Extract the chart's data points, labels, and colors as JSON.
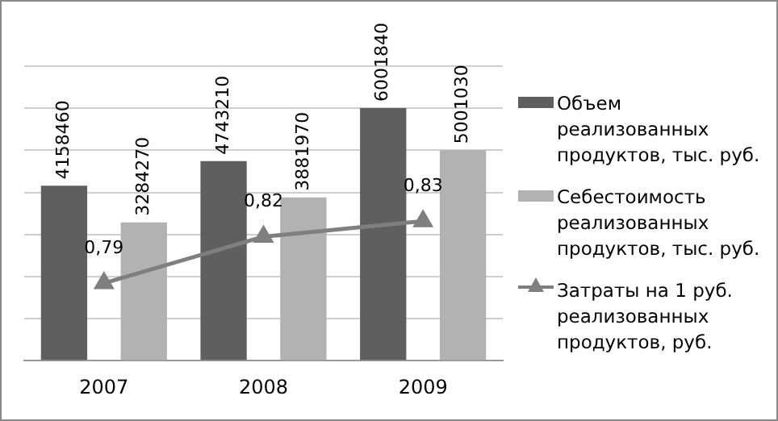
{
  "chart_data": {
    "type": "bar",
    "categories": [
      "2007",
      "2008",
      "2009"
    ],
    "series": [
      {
        "name": "Объем реализованных продуктов, тыс. руб.",
        "color": "#5f5f5f",
        "values": [
          4158460,
          4743210,
          6001840
        ]
      },
      {
        "name": "Себестоимость реализованных продуктов, тыс. руб.",
        "color": "#b2b2b2",
        "values": [
          3284270,
          3881970,
          5001030
        ]
      },
      {
        "name": "Затраты на 1 руб. реализованных продуктов, руб.",
        "type": "line",
        "axis": "y2",
        "color": "#7f7f7f",
        "marker": "triangle",
        "values": [
          0.79,
          0.82,
          0.83
        ],
        "value_labels": [
          "0,79",
          "0,82",
          "0,83"
        ]
      }
    ],
    "ylim": [
      0,
      7000000
    ],
    "yticks": [
      {
        "value": 0,
        "label": null
      },
      {
        "value": 1000000,
        "label": null
      },
      {
        "value": 2000000,
        "label": null
      },
      {
        "value": 3000000,
        "label": null
      },
      {
        "value": 4000000,
        "label": null
      },
      {
        "value": 5000000,
        "label": null
      },
      {
        "value": 6000000,
        "label": null
      },
      {
        "value": 7000000,
        "label": null
      }
    ],
    "y2lim": [
      0.74,
      0.93
    ],
    "tick_labels": "x",
    "grid": "y",
    "data_labels": true,
    "legend": "right"
  }
}
